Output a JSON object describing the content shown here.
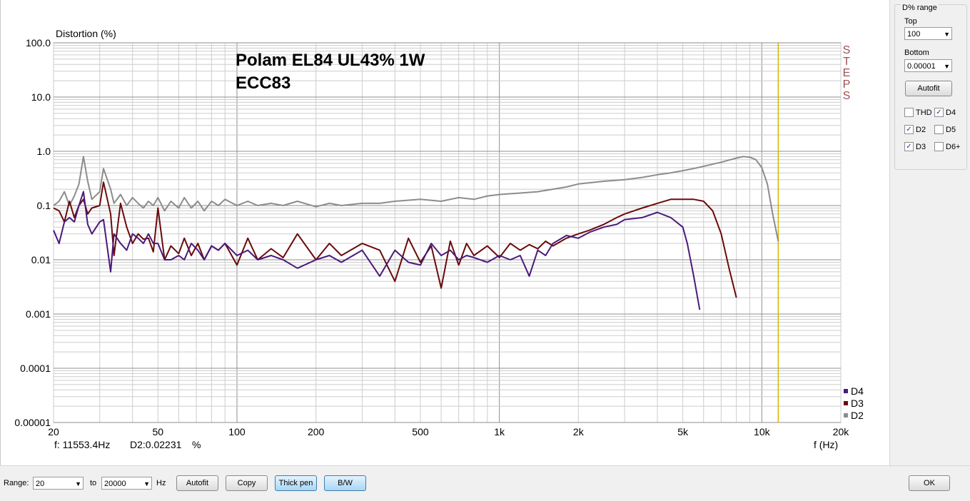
{
  "chart_data": {
    "type": "line",
    "title": "Polam EL84 UL43% 1W",
    "subtitle": "ECC83",
    "ylabel": "Distortion (%)",
    "xlabel": "f (Hz)",
    "xscale": "log",
    "yscale": "log",
    "xlim": [
      20,
      20000
    ],
    "ylim": [
      1e-05,
      100
    ],
    "grid": true,
    "legend_position": "bottom-right",
    "side_label": "STEPS",
    "x_ticks": [
      "20",
      "50",
      "100",
      "200",
      "500",
      "1k",
      "2k",
      "5k",
      "10k",
      "20k"
    ],
    "x_tick_values": [
      20,
      50,
      100,
      200,
      500,
      1000,
      2000,
      5000,
      10000,
      20000
    ],
    "y_ticks": [
      "100.0",
      "10.0",
      "1.0",
      "0.1",
      "0.01",
      "0.001",
      "0.0001",
      "0.00001"
    ],
    "y_tick_values": [
      100,
      10,
      1,
      0.1,
      0.01,
      0.001,
      0.0001,
      1e-05
    ],
    "cursor_hz": 11553.4,
    "readout": {
      "freq": "f: 11553.4Hz",
      "value": "D2:0.02231",
      "unit": "%"
    },
    "series": [
      {
        "name": "D2",
        "color": "#8c8c8c",
        "x": [
          20,
          21,
          22,
          23,
          24,
          25,
          26,
          27,
          28,
          30,
          31,
          33,
          34,
          36,
          38,
          40,
          42,
          44,
          46,
          48,
          50,
          53,
          56,
          60,
          63,
          67,
          71,
          75,
          80,
          85,
          90,
          100,
          110,
          120,
          135,
          150,
          170,
          200,
          225,
          250,
          300,
          350,
          400,
          500,
          600,
          700,
          800,
          900,
          1000,
          1200,
          1400,
          1600,
          1800,
          2000,
          2500,
          3000,
          3500,
          4000,
          4500,
          5000,
          5500,
          6000,
          7000,
          8000,
          8500,
          9000,
          9500,
          10000,
          10500,
          11000,
          11553
        ],
        "values": [
          0.1,
          0.12,
          0.18,
          0.1,
          0.15,
          0.25,
          0.8,
          0.28,
          0.13,
          0.18,
          0.48,
          0.2,
          0.11,
          0.16,
          0.1,
          0.14,
          0.11,
          0.09,
          0.12,
          0.1,
          0.14,
          0.08,
          0.12,
          0.09,
          0.14,
          0.09,
          0.12,
          0.08,
          0.12,
          0.1,
          0.13,
          0.1,
          0.12,
          0.1,
          0.11,
          0.1,
          0.12,
          0.095,
          0.11,
          0.1,
          0.11,
          0.11,
          0.12,
          0.13,
          0.12,
          0.14,
          0.13,
          0.15,
          0.16,
          0.17,
          0.18,
          0.2,
          0.22,
          0.25,
          0.28,
          0.3,
          0.33,
          0.37,
          0.4,
          0.44,
          0.48,
          0.53,
          0.63,
          0.75,
          0.8,
          0.78,
          0.7,
          0.5,
          0.25,
          0.07,
          0.022
        ]
      },
      {
        "name": "D3",
        "color": "#6a0a0a",
        "x": [
          20,
          21,
          22,
          23,
          24,
          25,
          26,
          27,
          28,
          30,
          31,
          33,
          34,
          36,
          38,
          40,
          42,
          44,
          46,
          48,
          50,
          53,
          56,
          60,
          63,
          67,
          71,
          75,
          80,
          85,
          90,
          100,
          110,
          120,
          135,
          150,
          170,
          200,
          225,
          250,
          300,
          350,
          400,
          450,
          500,
          550,
          600,
          650,
          700,
          750,
          800,
          900,
          1000,
          1100,
          1200,
          1300,
          1400,
          1500,
          1600,
          1800,
          2000,
          2200,
          2500,
          2800,
          3000,
          3500,
          4000,
          4500,
          5000,
          5500,
          6000,
          6500,
          7000,
          7500,
          8000
        ],
        "values": [
          0.09,
          0.08,
          0.05,
          0.12,
          0.06,
          0.1,
          0.13,
          0.07,
          0.09,
          0.1,
          0.27,
          0.07,
          0.012,
          0.11,
          0.04,
          0.02,
          0.03,
          0.024,
          0.025,
          0.014,
          0.09,
          0.01,
          0.018,
          0.013,
          0.025,
          0.012,
          0.02,
          0.01,
          0.018,
          0.015,
          0.02,
          0.008,
          0.025,
          0.01,
          0.016,
          0.011,
          0.03,
          0.01,
          0.02,
          0.012,
          0.02,
          0.015,
          0.004,
          0.025,
          0.009,
          0.018,
          0.003,
          0.022,
          0.008,
          0.02,
          0.012,
          0.018,
          0.011,
          0.02,
          0.015,
          0.019,
          0.016,
          0.022,
          0.018,
          0.025,
          0.03,
          0.035,
          0.045,
          0.06,
          0.07,
          0.09,
          0.11,
          0.13,
          0.13,
          0.13,
          0.12,
          0.08,
          0.03,
          0.007,
          0.002
        ]
      },
      {
        "name": "D4",
        "color": "#4a1a7a",
        "x": [
          20,
          21,
          22,
          23,
          24,
          25,
          26,
          27,
          28,
          30,
          31,
          33,
          34,
          36,
          38,
          40,
          42,
          44,
          46,
          48,
          50,
          53,
          56,
          60,
          63,
          67,
          71,
          75,
          80,
          85,
          90,
          100,
          110,
          120,
          135,
          150,
          170,
          200,
          225,
          250,
          300,
          350,
          400,
          450,
          500,
          550,
          600,
          650,
          700,
          750,
          800,
          900,
          1000,
          1100,
          1200,
          1300,
          1400,
          1500,
          1600,
          1800,
          2000,
          2200,
          2500,
          2800,
          3000,
          3500,
          4000,
          4500,
          5000,
          5200,
          5500,
          5800
        ],
        "values": [
          0.035,
          0.02,
          0.05,
          0.06,
          0.05,
          0.1,
          0.18,
          0.045,
          0.03,
          0.05,
          0.055,
          0.006,
          0.03,
          0.02,
          0.015,
          0.03,
          0.025,
          0.02,
          0.03,
          0.02,
          0.02,
          0.01,
          0.01,
          0.012,
          0.01,
          0.02,
          0.015,
          0.01,
          0.018,
          0.015,
          0.02,
          0.012,
          0.015,
          0.01,
          0.012,
          0.01,
          0.007,
          0.01,
          0.012,
          0.009,
          0.015,
          0.005,
          0.015,
          0.009,
          0.008,
          0.02,
          0.012,
          0.015,
          0.01,
          0.012,
          0.011,
          0.009,
          0.012,
          0.01,
          0.012,
          0.005,
          0.015,
          0.012,
          0.02,
          0.028,
          0.025,
          0.032,
          0.04,
          0.045,
          0.055,
          0.06,
          0.075,
          0.06,
          0.04,
          0.02,
          0.005,
          0.0012
        ]
      }
    ]
  },
  "right_panel": {
    "title": "D% range",
    "top_label": "Top",
    "top_value": "100",
    "bottom_label": "Bottom",
    "bottom_value": "0.00001",
    "autofit_label": "Autofit",
    "checkboxes": [
      {
        "label": "THD",
        "checked": false
      },
      {
        "label": "D4",
        "checked": true
      },
      {
        "label": "D2",
        "checked": true
      },
      {
        "label": "D5",
        "checked": false
      },
      {
        "label": "D3",
        "checked": true
      },
      {
        "label": "D6+",
        "checked": false
      }
    ]
  },
  "bottom_bar": {
    "range_label": "Range:",
    "range_from": "20",
    "to_label": "to",
    "range_to": "20000",
    "hz_label": "Hz",
    "autofit_label": "Autofit",
    "copy_label": "Copy",
    "thick_pen_label": "Thick pen",
    "bw_label": "B/W",
    "ok_label": "OK"
  },
  "colors": {
    "cursor": "#d8b400",
    "steps": "#a05050"
  }
}
